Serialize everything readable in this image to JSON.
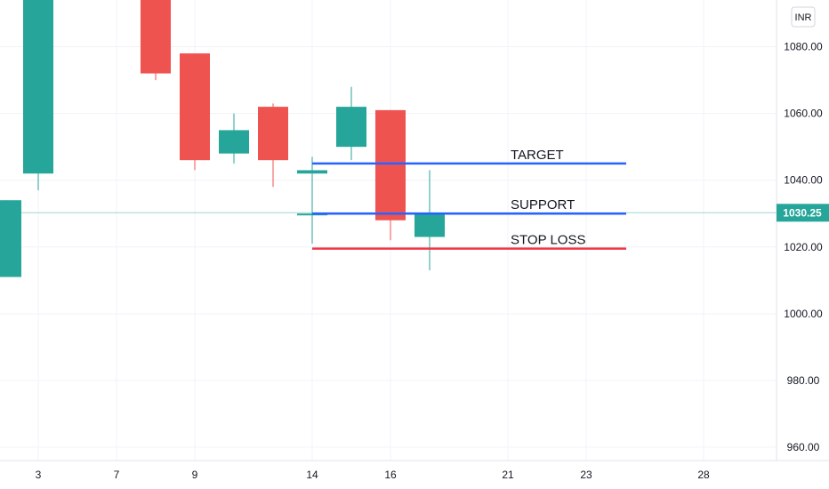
{
  "chart_data": {
    "type": "candlestick",
    "currency": "INR",
    "x_ticks": [
      3,
      7,
      9,
      14,
      16,
      21,
      23,
      28
    ],
    "y_ticks": [
      "960.00",
      "980.00",
      "1000.00",
      "1020.00",
      "1040.00",
      "1060.00",
      "1080.00"
    ],
    "ylim": [
      956,
      1094
    ],
    "candles": [
      {
        "day": 2,
        "open": 1011,
        "high": 1034,
        "low": 1011,
        "close": 1034
      },
      {
        "day": 3,
        "open": 1042,
        "high": 1094,
        "low": 1037,
        "close": 1094
      },
      {
        "day": 8,
        "open": 1094,
        "high": 1094,
        "low": 1070,
        "close": 1072
      },
      {
        "day": 9,
        "open": 1078,
        "high": 1078,
        "low": 1043,
        "close": 1046
      },
      {
        "day": 10,
        "open": 1048,
        "high": 1060,
        "low": 1045,
        "close": 1055
      },
      {
        "day": 11,
        "open": 1062,
        "high": 1063,
        "low": 1038,
        "close": 1046
      },
      {
        "day": 13,
        "open": 1042,
        "high": 1043,
        "low": 1042,
        "close": 1043
      },
      {
        "day": 14,
        "open": 1030,
        "high": 1047,
        "low": 1021,
        "close": 1030
      },
      {
        "day": 15,
        "open": 1050,
        "high": 1068,
        "low": 1046,
        "close": 1062
      },
      {
        "day": 16,
        "open": 1061,
        "high": 1061,
        "low": 1022,
        "close": 1028
      },
      {
        "day": 17,
        "open": 1023,
        "high": 1043,
        "low": 1013,
        "close": 1030
      }
    ],
    "annotations": [
      {
        "label": "TARGET",
        "price": 1045,
        "color": "#2962ff",
        "from_day": 14,
        "to_day": 24.2
      },
      {
        "label": "SUPPORT",
        "price": 1030,
        "color": "#2962ff",
        "from_day": 14,
        "to_day": 24.2
      },
      {
        "label": "STOP LOSS",
        "price": 1019.5,
        "color": "#f23645",
        "from_day": 14,
        "to_day": 24.2
      }
    ],
    "current_price": "1030.25",
    "current_price_value": 1030.25,
    "up_color": "#26a69a",
    "down_color": "#ef5350"
  }
}
